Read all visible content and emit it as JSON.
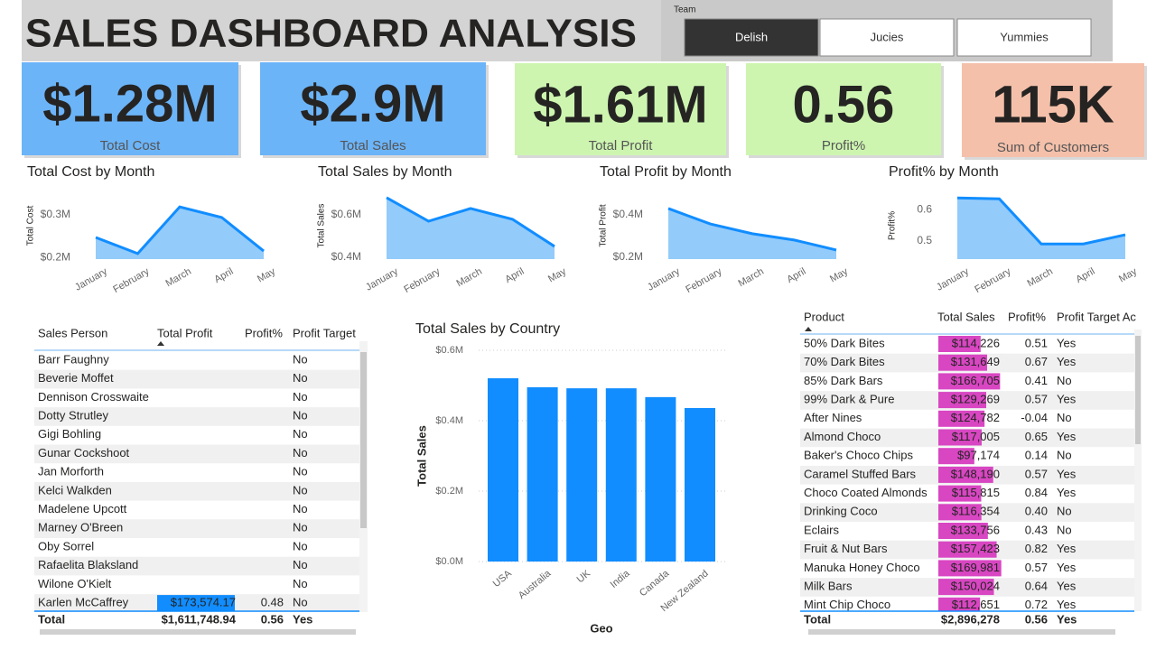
{
  "header": {
    "title": "SALES DASHBOARD ANALYSIS"
  },
  "slicer": {
    "label": "Team",
    "options": [
      "Delish",
      "Jucies",
      "Yummies"
    ],
    "selected": 0
  },
  "kpis": [
    {
      "value": "$1.28M",
      "label": "Total Cost",
      "color": "#6cb4f8"
    },
    {
      "value": "$2.9M",
      "label": "Total Sales",
      "color": "#6cb4f8"
    },
    {
      "value": "$1.61M",
      "label": "Total Profit",
      "color": "#cdf5b0"
    },
    {
      "value": "0.56",
      "label": "Profit%",
      "color": "#cdf5b0"
    },
    {
      "value": "115K",
      "label": "Sum of Customers",
      "color": "#f4c0aa"
    }
  ],
  "chart_data": [
    {
      "type": "area",
      "title": "Total Cost by Month",
      "y_label": "Total Cost",
      "categories": [
        "January",
        "February",
        "March",
        "April",
        "May"
      ],
      "values": [
        247000,
        209000,
        319000,
        294000,
        215000
      ],
      "color": "#118dff",
      "fill": "#93cbfb",
      "ylim": [
        196000,
        349000
      ],
      "yticks": [
        {
          "value": 200000,
          "label": "$0.2M"
        },
        {
          "value": 300000,
          "label": "$0.3M"
        }
      ]
    },
    {
      "type": "area",
      "title": "Total Sales by Month",
      "y_label": "Total Sales",
      "categories": [
        "January",
        "February",
        "March",
        "April",
        "May"
      ],
      "values": [
        681000,
        570000,
        630000,
        579000,
        451000
      ],
      "color": "#118dff",
      "fill": "#93cbfb",
      "ylim": [
        391000,
        698000
      ],
      "yticks": [
        {
          "value": 400000,
          "label": "$0.4M"
        },
        {
          "value": 600000,
          "label": "$0.6M"
        }
      ]
    },
    {
      "type": "area",
      "title": "Total Profit by Month",
      "y_label": "Total Profit",
      "categories": [
        "January",
        "February",
        "March",
        "April",
        "May"
      ],
      "values": [
        430000,
        357000,
        311000,
        281000,
        234000
      ],
      "color": "#118dff",
      "fill": "#93cbfb",
      "ylim": [
        191000,
        498000
      ],
      "yticks": [
        {
          "value": 200000,
          "label": "$0.2M"
        },
        {
          "value": 400000,
          "label": "$0.4M"
        }
      ]
    },
    {
      "type": "area",
      "title": "Profit% by Month",
      "y_label": "Profit%",
      "categories": [
        "January",
        "February",
        "March",
        "April",
        "May"
      ],
      "values": [
        0.637,
        0.634,
        0.491,
        0.491,
        0.52
      ],
      "color": "#118dff",
      "fill": "#93cbfb",
      "ylim": [
        0.443,
        0.649
      ],
      "yticks": [
        0.5,
        0.6
      ]
    },
    {
      "type": "bar",
      "title": "Total Sales by Country",
      "x_label": "Geo",
      "y_label": "Total Sales",
      "categories": [
        "USA",
        "Australia",
        "UK",
        "India",
        "Canada",
        "New Zealand"
      ],
      "values": [
        520500,
        495000,
        492000,
        492000,
        467000,
        436000
      ],
      "color": "#118dff",
      "ylim": [
        0,
        600000
      ],
      "yticks": [
        {
          "value": 0,
          "label": "$0.0M"
        },
        {
          "value": 200000,
          "label": "$0.2M"
        },
        {
          "value": 400000,
          "label": "$0.4M"
        },
        {
          "value": 600000,
          "label": "$0.6M"
        }
      ],
      "grid": true
    }
  ],
  "sales_person_table": {
    "columns": [
      "Sales Person",
      "Total Profit",
      "Profit%",
      "Profit Target"
    ],
    "rows": [
      {
        "name": "Barr Faughny",
        "target": "No"
      },
      {
        "name": "Beverie Moffet",
        "target": "No"
      },
      {
        "name": "Dennison Crosswaite",
        "target": "No"
      },
      {
        "name": "Dotty Strutley",
        "target": "No"
      },
      {
        "name": "Gigi Bohling",
        "target": "No"
      },
      {
        "name": "Gunar Cockshoot",
        "target": "No"
      },
      {
        "name": "Jan Morforth",
        "target": "No"
      },
      {
        "name": "Kelci Walkden",
        "target": "No"
      },
      {
        "name": "Madelene Upcott",
        "target": "No"
      },
      {
        "name": "Marney O'Breen",
        "target": "No"
      },
      {
        "name": "Oby Sorrel",
        "target": "No"
      },
      {
        "name": "Rafaelita Blaksland",
        "target": "No"
      },
      {
        "name": "Wilone O'Kielt",
        "target": "No"
      },
      {
        "name": "Karlen McCaffrey",
        "profit": "$173,574.17",
        "pct": "0.48",
        "target": "No"
      }
    ],
    "total": {
      "name": "Total",
      "profit": "$1,611,748.94",
      "pct": "0.56",
      "target": "Yes"
    }
  },
  "product_table": {
    "columns": [
      "Product",
      "Total Sales",
      "Profit%",
      "Profit Target Ac"
    ],
    "bar_color": "#d846c2",
    "rows": [
      {
        "name": "50% Dark Bites",
        "sales": {
          "value": 114226,
          "label": "$114,226"
        },
        "pct": "0.51",
        "target": "Yes"
      },
      {
        "name": "70% Dark Bites",
        "sales": {
          "value": 131649,
          "label": "$131,649"
        },
        "pct": "0.67",
        "target": "Yes"
      },
      {
        "name": "85% Dark Bars",
        "sales": {
          "value": 166705,
          "label": "$166,705"
        },
        "pct": "0.41",
        "target": "No"
      },
      {
        "name": "99% Dark & Pure",
        "sales": {
          "value": 129269,
          "label": "$129,269"
        },
        "pct": "0.57",
        "target": "Yes"
      },
      {
        "name": "After Nines",
        "sales": {
          "value": 124782,
          "label": "$124,782"
        },
        "pct": "-0.04",
        "target": "No"
      },
      {
        "name": "Almond Choco",
        "sales": {
          "value": 117005,
          "label": "$117,005"
        },
        "pct": "0.65",
        "target": "Yes"
      },
      {
        "name": "Baker's Choco Chips",
        "sales": {
          "value": 97174,
          "label": "$97,174"
        },
        "pct": "0.14",
        "target": "No"
      },
      {
        "name": "Caramel Stuffed Bars",
        "sales": {
          "value": 148190,
          "label": "$148,190"
        },
        "pct": "0.57",
        "target": "Yes"
      },
      {
        "name": "Choco Coated Almonds",
        "sales": {
          "value": 115815,
          "label": "$115,815"
        },
        "pct": "0.84",
        "target": "Yes"
      },
      {
        "name": "Drinking Coco",
        "sales": {
          "value": 116354,
          "label": "$116,354"
        },
        "pct": "0.40",
        "target": "No"
      },
      {
        "name": "Eclairs",
        "sales": {
          "value": 133756,
          "label": "$133,756"
        },
        "pct": "0.43",
        "target": "No"
      },
      {
        "name": "Fruit & Nut Bars",
        "sales": {
          "value": 157423,
          "label": "$157,423"
        },
        "pct": "0.82",
        "target": "Yes"
      },
      {
        "name": "Manuka Honey Choco",
        "sales": {
          "value": 169981,
          "label": "$169,981"
        },
        "pct": "0.57",
        "target": "Yes"
      },
      {
        "name": "Milk Bars",
        "sales": {
          "value": 150024,
          "label": "$150,024"
        },
        "pct": "0.64",
        "target": "Yes"
      },
      {
        "name": "Mint Chip Choco",
        "sales": {
          "value": 112651,
          "label": "$112,651"
        },
        "pct": "0.72",
        "target": "Yes"
      }
    ],
    "total": {
      "name": "Total",
      "sales": "$2,896,278",
      "pct": "0.56",
      "target": "Yes"
    }
  }
}
